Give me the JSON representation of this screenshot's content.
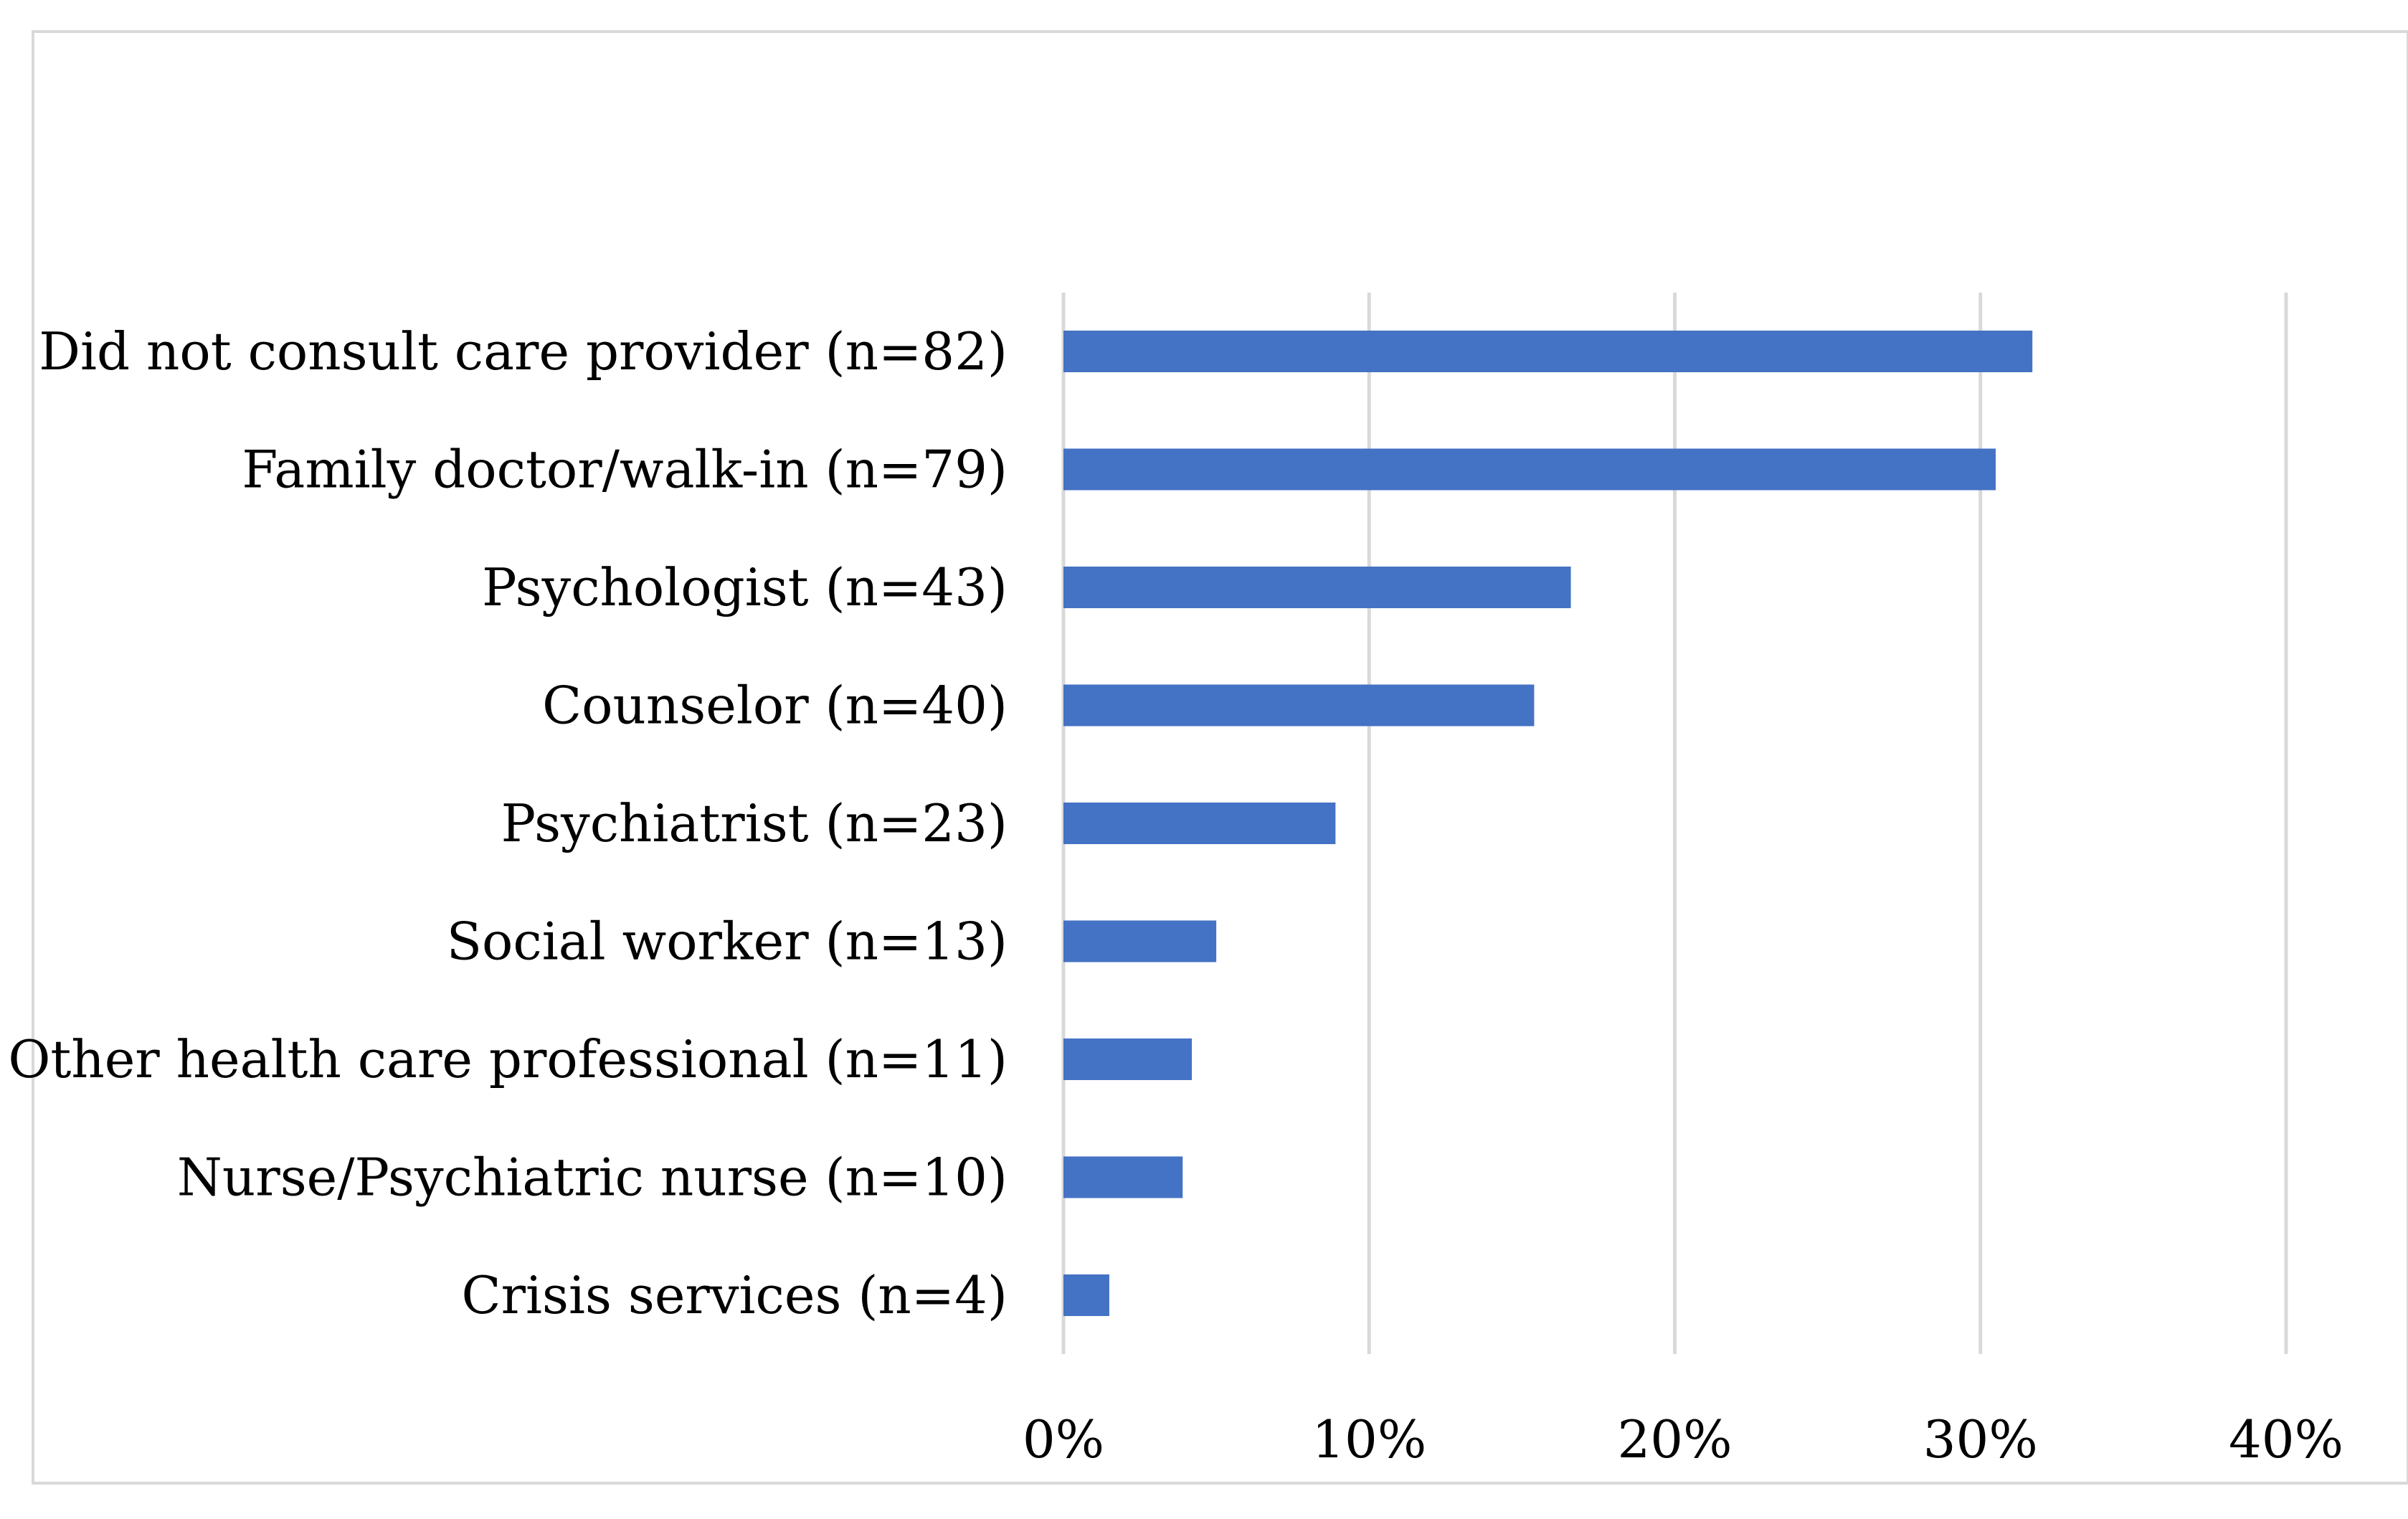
{
  "chart_data": {
    "type": "bar",
    "orientation": "horizontal",
    "title": "",
    "xlabel": "",
    "ylabel": "",
    "xlim": [
      0,
      40
    ],
    "x_ticks": [
      0,
      10,
      20,
      30,
      40
    ],
    "tick_suffix": "%",
    "grid": true,
    "legend": "none",
    "bar_color": "#4472C4",
    "grid_color": "#D9D9D9",
    "border_color": "#D9D9D9",
    "text_color": "#000000",
    "categories": [
      "Did not consult care provider (n=82)",
      "Family doctor/walk-in (n=79)",
      "Psychologist (n=43)",
      "Counselor (n=40)",
      "Psychiatrist (n=23)",
      "Social worker (n=13)",
      "Other health care professional (n=11)",
      "Nurse/Psychiatric nurse (n=10)",
      "Crisis services (n=4)"
    ],
    "values": [
      31.7,
      30.5,
      16.6,
      15.4,
      8.9,
      5.0,
      4.2,
      3.9,
      1.5
    ]
  }
}
